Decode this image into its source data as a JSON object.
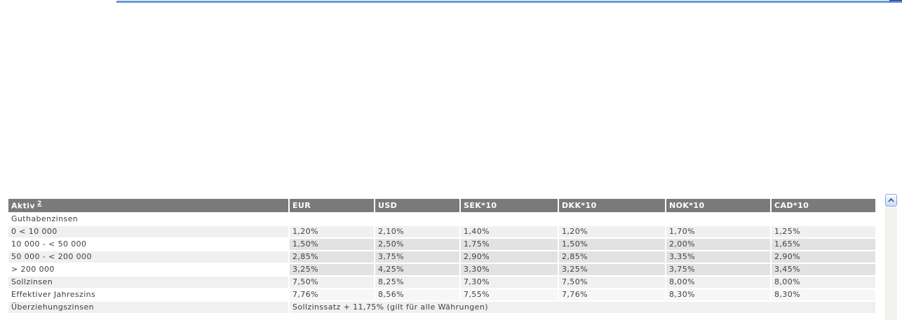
{
  "accents": {
    "top_rule": "#6b97d4",
    "top_rule_dark": "#2e5ea8",
    "header_bg": "#7a7a7a",
    "header_text": "#ffffff"
  },
  "table": {
    "header": {
      "row_label": "Aktiv",
      "footnote_ref": "2",
      "currencies": [
        "EUR",
        "USD",
        "SEK*10",
        "DKK*10",
        "NOK*10",
        "CAD*10"
      ]
    },
    "rows": [
      {
        "kind": "section",
        "label": "Guthabenzinsen",
        "label_bg": "#ffffff",
        "value_bg": "#ffffff"
      },
      {
        "kind": "values",
        "label": "0 < 10 000",
        "label_bg": "#f0f0f0",
        "value_bg": "#f0f0f0",
        "values": [
          "1,20%",
          "2,10%",
          "1,40%",
          "1,20%",
          "1,70%",
          "1,25%"
        ]
      },
      {
        "kind": "values",
        "label": "10 000 - < 50 000",
        "label_bg": "#ffffff",
        "value_bg": "#e2e2e2",
        "values": [
          "1,50%",
          "2,50%",
          "1,75%",
          "1,50%",
          "2,00%",
          "1,65%"
        ]
      },
      {
        "kind": "values",
        "label": "50 000 - < 200 000",
        "label_bg": "#f0f0f0",
        "value_bg": "#e2e2e2",
        "values": [
          "2,85%",
          "3,75%",
          "2,90%",
          "2,85%",
          "3,35%",
          "2,90%"
        ]
      },
      {
        "kind": "values",
        "label": "> 200 000",
        "label_bg": "#ffffff",
        "value_bg": "#e2e2e2",
        "values": [
          "3,25%",
          "4,25%",
          "3,30%",
          "3,25%",
          "3,75%",
          "3,45%"
        ]
      },
      {
        "kind": "values",
        "label": "Sollzinsen",
        "label_bg": "#f0f0f0",
        "value_bg": "#f0f0f0",
        "values": [
          "7,50%",
          "8,25%",
          "7,30%",
          "7,50%",
          "8,00%",
          "8,00%"
        ]
      },
      {
        "kind": "values",
        "label": "Effektiver Jahreszins",
        "label_bg": "#ffffff",
        "value_bg": "#f7f7f7",
        "values": [
          "7,76%",
          "8,56%",
          "7,55%",
          "7,76%",
          "8,30%",
          "8,30%"
        ]
      },
      {
        "kind": "note",
        "label": "Überziehungszinsen",
        "label_bg": "#f0f0f0",
        "value_bg": "#f0f0f0",
        "note": "Sollzinssatz + 11,75% (gilt für alle Währungen)"
      }
    ]
  },
  "scrollbar": {
    "up_icon": "chevron-up"
  }
}
